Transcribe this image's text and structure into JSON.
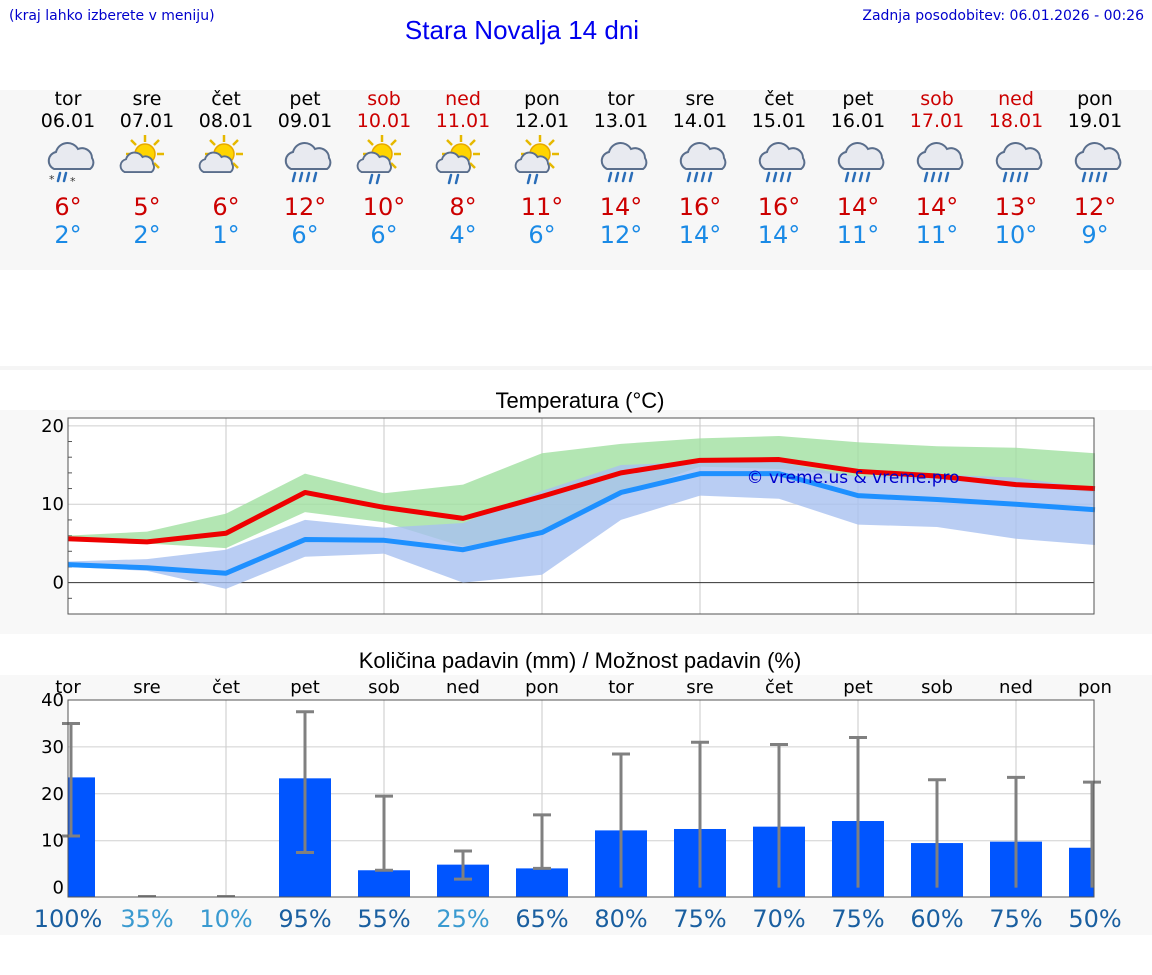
{
  "header": {
    "hint": "(kraj lahko izberete v meniju)",
    "title": "Stara Novalja 14 dni",
    "updated": "Zadnja posodobitev: 06.01.2026 - 00:26"
  },
  "colors": {
    "max": "#cc0000",
    "min": "#1a8ae6",
    "bar": "#0055ff",
    "link": "#0000ee"
  },
  "days": [
    {
      "name": "tor",
      "date": "06.01",
      "icon": "snow-rain-cloud-icon",
      "max": "6°",
      "min": "2°",
      "weekend": false
    },
    {
      "name": "sre",
      "date": "07.01",
      "icon": "partly-sunny-icon",
      "max": "5°",
      "min": "2°",
      "weekend": false
    },
    {
      "name": "čet",
      "date": "08.01",
      "icon": "partly-sunny-icon",
      "max": "6°",
      "min": "1°",
      "weekend": false
    },
    {
      "name": "pet",
      "date": "09.01",
      "icon": "rain-cloud-icon",
      "max": "12°",
      "min": "6°",
      "weekend": false
    },
    {
      "name": "sob",
      "date": "10.01",
      "icon": "sun-shower-icon",
      "max": "10°",
      "min": "6°",
      "weekend": true
    },
    {
      "name": "ned",
      "date": "11.01",
      "icon": "sun-shower-icon",
      "max": "8°",
      "min": "4°",
      "weekend": true
    },
    {
      "name": "pon",
      "date": "12.01",
      "icon": "sun-shower-icon",
      "max": "11°",
      "min": "6°",
      "weekend": false
    },
    {
      "name": "tor",
      "date": "13.01",
      "icon": "rain-cloud-icon",
      "max": "14°",
      "min": "12°",
      "weekend": false
    },
    {
      "name": "sre",
      "date": "14.01",
      "icon": "rain-cloud-icon",
      "max": "16°",
      "min": "14°",
      "weekend": false
    },
    {
      "name": "čet",
      "date": "15.01",
      "icon": "rain-cloud-icon",
      "max": "16°",
      "min": "14°",
      "weekend": false
    },
    {
      "name": "pet",
      "date": "16.01",
      "icon": "rain-cloud-icon",
      "max": "14°",
      "min": "11°",
      "weekend": false
    },
    {
      "name": "sob",
      "date": "17.01",
      "icon": "rain-cloud-icon",
      "max": "14°",
      "min": "11°",
      "weekend": true
    },
    {
      "name": "ned",
      "date": "18.01",
      "icon": "rain-cloud-icon",
      "max": "13°",
      "min": "10°",
      "weekend": true
    },
    {
      "name": "pon",
      "date": "19.01",
      "icon": "rain-cloud-icon",
      "max": "12°",
      "min": "9°",
      "weekend": false
    }
  ],
  "chart_data": [
    {
      "type": "line",
      "title": "Temperatura (°C)",
      "watermark": "© vreme.us & vreme.pro",
      "x": [
        0,
        1,
        2,
        3,
        4,
        5,
        6,
        7,
        8,
        9,
        10,
        11,
        12,
        13
      ],
      "ylim": [
        -4,
        21
      ],
      "yticks": [
        0,
        10,
        20
      ],
      "series": [
        {
          "name": "max",
          "color": "#ee0000",
          "values": [
            5.6,
            5.2,
            6.3,
            11.5,
            9.6,
            8.2,
            11.0,
            14.0,
            15.6,
            15.7,
            14.2,
            13.6,
            12.5,
            12.0
          ]
        },
        {
          "name": "min",
          "color": "#1e90ff",
          "values": [
            2.3,
            1.9,
            1.2,
            5.5,
            5.4,
            4.2,
            6.4,
            11.5,
            13.9,
            13.9,
            11.1,
            10.6,
            10.0,
            9.3
          ]
        }
      ],
      "bands": [
        {
          "name": "max-range",
          "color": "#a0e0a0",
          "upper": [
            6.0,
            6.5,
            8.8,
            13.9,
            11.4,
            12.5,
            16.5,
            17.7,
            18.4,
            18.7,
            17.9,
            17.4,
            17.2,
            16.5
          ],
          "lower": [
            5.3,
            5.0,
            4.4,
            9.0,
            7.7,
            4.6,
            6.5,
            11.2,
            14.8,
            14.5,
            13.5,
            13.1,
            12.5,
            11.5
          ]
        },
        {
          "name": "min-range",
          "color": "#a8c0f0",
          "upper": [
            2.7,
            3.0,
            4.2,
            8.0,
            7.0,
            7.6,
            11.7,
            15.0,
            15.4,
            15.4,
            13.5,
            13.8,
            13.4,
            12.0
          ],
          "lower": [
            2.0,
            1.5,
            -0.8,
            3.3,
            3.7,
            0.0,
            1.0,
            8.0,
            11.1,
            10.7,
            7.4,
            7.1,
            5.6,
            4.8
          ]
        }
      ]
    },
    {
      "type": "bar",
      "title": "Količina padavin (mm) / Možnost padavin (%)",
      "categories": [
        "tor",
        "sre",
        "čet",
        "pet",
        "sob",
        "ned",
        "pon",
        "tor",
        "sre",
        "čet",
        "pet",
        "sob",
        "ned",
        "pon"
      ],
      "values": [
        23.5,
        0,
        0,
        23.3,
        3.7,
        4.9,
        4.1,
        12.2,
        12.5,
        13.0,
        14.2,
        9.5,
        9.8,
        8.5
      ],
      "error_low": [
        11.0,
        0,
        0,
        7.5,
        3.7,
        1.8,
        4.1,
        0,
        0,
        0,
        0,
        0,
        0,
        0
      ],
      "error_high": [
        35.0,
        0,
        0,
        37.5,
        19.5,
        7.8,
        15.5,
        28.5,
        31.0,
        30.5,
        32.0,
        23.0,
        23.5,
        22.5
      ],
      "chance": [
        "100%",
        "35%",
        "10%",
        "95%",
        "55%",
        "25%",
        "65%",
        "80%",
        "75%",
        "70%",
        "75%",
        "60%",
        "75%",
        "50%"
      ],
      "chance_colors": [
        "#1a5fa0",
        "#3a9ad0",
        "#3a9ad0",
        "#1a5fa0",
        "#1a5fa0",
        "#3a9ad0",
        "#1a5fa0",
        "#1a5fa0",
        "#1a5fa0",
        "#1a5fa0",
        "#1a5fa0",
        "#1a5fa0",
        "#1a5fa0",
        "#1a5fa0"
      ],
      "ylim": [
        -2,
        40
      ],
      "yticks": [
        0,
        10,
        20,
        30,
        40
      ]
    }
  ]
}
